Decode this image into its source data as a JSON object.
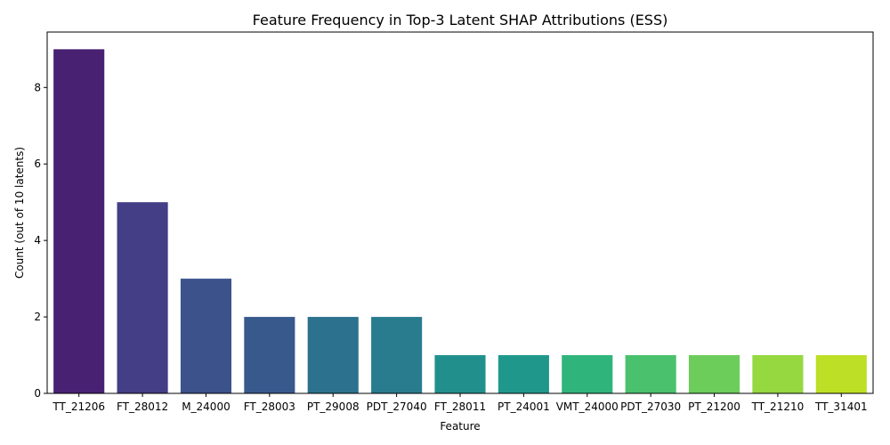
{
  "chart_data": {
    "type": "bar",
    "title": "Feature Frequency in Top-3 Latent SHAP Attributions (ESS)",
    "xlabel": "Feature",
    "ylabel": "Count (out of 10 latents)",
    "categories": [
      "TT_21206",
      "FT_28012",
      "M_24000",
      "FT_28003",
      "PT_29008",
      "PDT_27040",
      "FT_28011",
      "PT_24001",
      "VMT_24000",
      "PDT_27030",
      "PT_21200",
      "TT_21210",
      "TT_31401"
    ],
    "values": [
      9,
      5,
      3,
      2,
      2,
      2,
      1,
      1,
      1,
      1,
      1,
      1,
      1
    ],
    "colors": [
      "#482173",
      "#433e85",
      "#3b528b",
      "#38598c",
      "#2c728e",
      "#287c8e",
      "#21908d",
      "#1f988b",
      "#2fb47c",
      "#4ac16d",
      "#6ccd5a",
      "#95d840",
      "#bddf26"
    ],
    "ylim": [
      0,
      9.45
    ],
    "yticks": [
      0,
      2,
      4,
      6,
      8
    ],
    "grid": false,
    "legend": "none"
  }
}
